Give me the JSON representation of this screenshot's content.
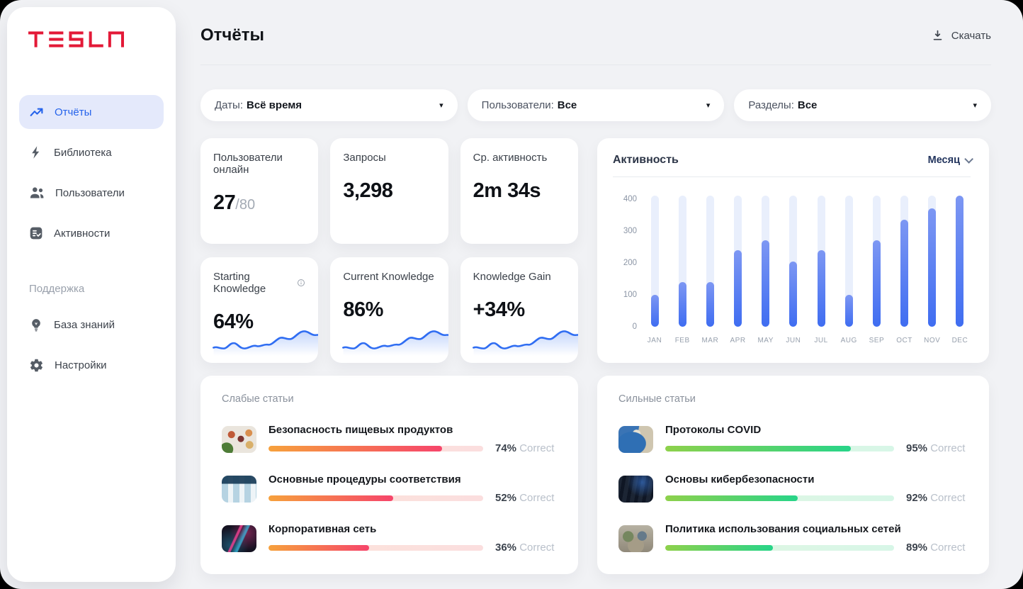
{
  "brand": {
    "name": "TESLA",
    "color": "#e31937"
  },
  "sidebar": {
    "items": [
      {
        "label": "Отчёты",
        "icon": "trending-up-icon",
        "active": true
      },
      {
        "label": "Библиотека",
        "icon": "lightning-icon",
        "active": false
      },
      {
        "label": "Пользователи",
        "icon": "users-icon",
        "active": false
      },
      {
        "label": "Активности",
        "icon": "activity-list-icon",
        "active": false
      }
    ],
    "support_label": "Поддержка",
    "support_items": [
      {
        "label": "База знаний",
        "icon": "lightbulb-icon"
      },
      {
        "label": "Настройки",
        "icon": "gear-icon"
      }
    ]
  },
  "header": {
    "title": "Отчёты",
    "download_label": "Скачать"
  },
  "filters": [
    {
      "label": "Даты:",
      "value": "Всё время"
    },
    {
      "label": "Пользователи:",
      "value": "Все"
    },
    {
      "label": "Разделы:",
      "value": "Все"
    }
  ],
  "stats": [
    {
      "label": "Пользователи онлайн",
      "value": "27",
      "suffix": "/80"
    },
    {
      "label": "Запросы",
      "value": "3,298",
      "suffix": ""
    },
    {
      "label": "Ср. активность",
      "value": "2m 34s",
      "suffix": ""
    }
  ],
  "knowledge": [
    {
      "label": "Starting Knowledge",
      "value": "64%",
      "has_info": true
    },
    {
      "label": "Current Knowledge",
      "value": "86%",
      "has_info": false
    },
    {
      "label": "Knowledge Gain",
      "value": "+34%",
      "has_info": false
    }
  ],
  "activity": {
    "title": "Активность",
    "period": "Месяц"
  },
  "chart_data": {
    "type": "bar",
    "title": "Активность",
    "categories": [
      "JAN",
      "FEB",
      "MAR",
      "APR",
      "MAY",
      "JUN",
      "JUL",
      "AUG",
      "SEP",
      "OCT",
      "NOV",
      "DEC"
    ],
    "values": [
      100,
      140,
      140,
      240,
      270,
      205,
      240,
      100,
      270,
      335,
      370,
      410
    ],
    "yticks": [
      0,
      100,
      200,
      300,
      400
    ],
    "ylim": [
      0,
      410
    ],
    "xlabel": "",
    "ylabel": "",
    "grid": false,
    "legend": "none",
    "bar_color": "#3f6df1",
    "track_color": "#e9effc"
  },
  "weak_articles": {
    "title": "Слабые статьи",
    "items": [
      {
        "title": "Безопасность пищевых продуктов",
        "percent": "74%",
        "correct_label": "Correct",
        "fill_pct": 81,
        "thumb": "food-plates"
      },
      {
        "title": "Основные процедуры соответствия",
        "percent": "52%",
        "correct_label": "Correct",
        "fill_pct": 58,
        "thumb": "medical-vials"
      },
      {
        "title": "Корпоративная сеть",
        "percent": "36%",
        "correct_label": "Correct",
        "fill_pct": 47,
        "thumb": "neon-network"
      }
    ]
  },
  "strong_articles": {
    "title": "Сильные статьи",
    "items": [
      {
        "title": "Протоколы COVID",
        "percent": "95%",
        "correct_label": "Correct",
        "fill_pct": 81,
        "thumb": "medical-ppe"
      },
      {
        "title": "Основы кибербезопасности",
        "percent": "92%",
        "correct_label": "Correct",
        "fill_pct": 58,
        "thumb": "keyboard-dark"
      },
      {
        "title": "Политика использования социальных сетей",
        "percent": "89%",
        "correct_label": "Correct",
        "fill_pct": 47,
        "thumb": "people-meeting"
      }
    ]
  }
}
